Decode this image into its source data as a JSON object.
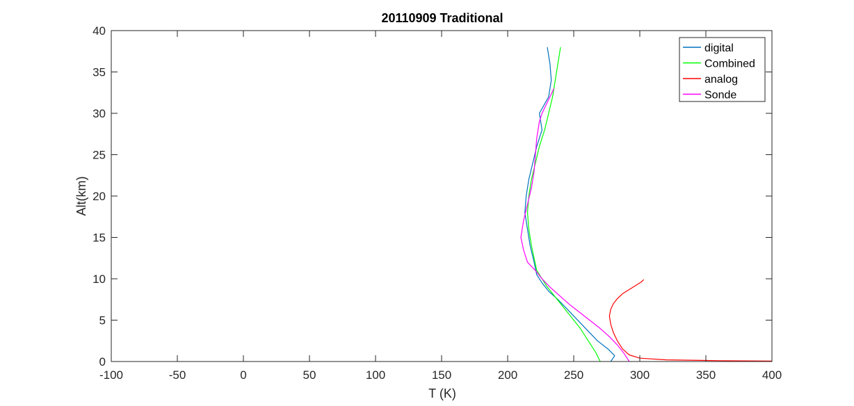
{
  "chart_data": {
    "type": "line",
    "title": "20110909 Traditional",
    "xlabel": "T (K)",
    "ylabel": "Alt(km)",
    "xlim": [
      -100,
      400
    ],
    "ylim": [
      0,
      40
    ],
    "xticks": [
      "-100",
      "-50",
      "0",
      "50",
      "100",
      "150",
      "200",
      "250",
      "300",
      "350",
      "400"
    ],
    "yticks": [
      "0",
      "5",
      "10",
      "15",
      "20",
      "25",
      "30",
      "35",
      "40"
    ],
    "grid": false,
    "legend_position": "top-right",
    "series": [
      {
        "name": "digital",
        "color": "#0072BD",
        "x": [
          278,
          281,
          276,
          268,
          262,
          256,
          250,
          244,
          238,
          231,
          226,
          222,
          220,
          217,
          215,
          213,
          214,
          216,
          219,
          222,
          226,
          224,
          231,
          233,
          232,
          230
        ],
        "y": [
          0.0,
          0.7,
          1.5,
          2.5,
          3.5,
          4.5,
          5.5,
          6.5,
          7.5,
          8.5,
          9.5,
          10.5,
          12.0,
          14.0,
          16.0,
          18.0,
          20.0,
          22.0,
          24.0,
          26.0,
          28.0,
          30.0,
          32.0,
          34.0,
          36.0,
          38.0
        ]
      },
      {
        "name": "Combined",
        "color": "#00FF00",
        "x": [
          270,
          267,
          263,
          259,
          255,
          250,
          245,
          240,
          235,
          230,
          226,
          222,
          220,
          218,
          216,
          215,
          216,
          218,
          221,
          224,
          228,
          231,
          234,
          236,
          238,
          240
        ],
        "y": [
          0.0,
          1.0,
          2.0,
          3.0,
          4.0,
          5.0,
          6.0,
          7.0,
          8.0,
          9.0,
          10.0,
          11.0,
          12.5,
          14.0,
          16.0,
          18.0,
          20.0,
          22.0,
          24.0,
          26.0,
          28.0,
          30.0,
          32.0,
          34.0,
          36.0,
          38.0
        ]
      },
      {
        "name": "analog",
        "color": "#FF0000",
        "x": [
          400,
          360,
          320,
          300,
          292,
          287,
          283,
          280,
          278,
          277,
          278,
          280,
          283,
          287,
          292,
          297,
          301,
          303
        ],
        "y": [
          0.05,
          0.1,
          0.2,
          0.4,
          0.8,
          1.5,
          2.5,
          3.5,
          4.5,
          5.5,
          6.3,
          7.0,
          7.6,
          8.2,
          8.7,
          9.2,
          9.6,
          9.9
        ]
      },
      {
        "name": "Sonde",
        "color": "#FF00FF",
        "x": [
          292,
          288,
          283,
          277,
          270,
          262,
          254,
          246,
          239,
          232,
          226,
          221,
          215,
          212,
          210,
          212,
          215,
          218,
          220,
          221,
          222,
          224,
          226,
          229,
          232,
          235
        ],
        "y": [
          0.0,
          1.0,
          2.0,
          3.0,
          4.0,
          5.0,
          6.0,
          7.0,
          8.0,
          9.0,
          10.0,
          11.0,
          12.0,
          13.5,
          15.0,
          17.0,
          19.0,
          21.0,
          23.0,
          25.0,
          27.0,
          29.0,
          30.0,
          31.0,
          32.0,
          33.0
        ]
      }
    ]
  }
}
